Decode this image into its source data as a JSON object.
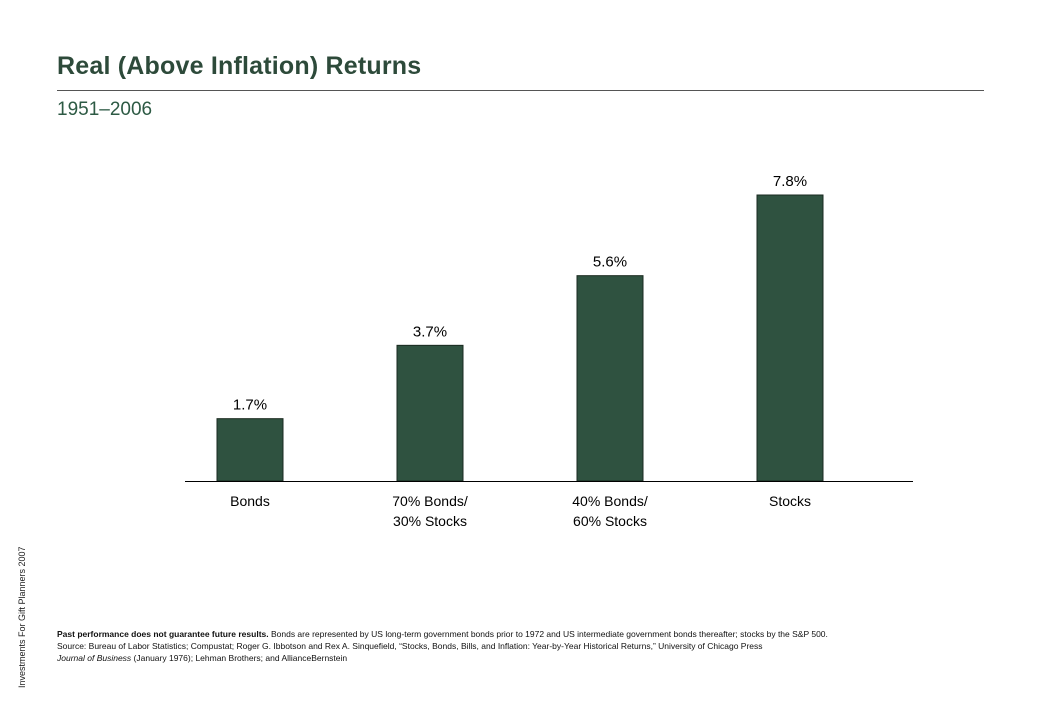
{
  "header": {
    "title": "Real (Above Inflation) Returns",
    "subtitle": "1951–2006"
  },
  "side_note": "Investments For Gift Planners 2007",
  "colors": {
    "bar": "#2f5240",
    "title": "#2d4a3a",
    "subtitle": "#2d5a44",
    "axis": "#000000"
  },
  "chart_data": {
    "type": "bar",
    "categories": [
      "Bonds",
      "70% Bonds/\n30% Stocks",
      "40% Bonds/\n60% Stocks",
      "Stocks"
    ],
    "values": [
      1.7,
      3.7,
      5.6,
      7.8
    ],
    "data_labels": [
      "1.7%",
      "3.7%",
      "5.6%",
      "7.8%"
    ],
    "title": "Real (Above Inflation) Returns",
    "subtitle": "1951–2006",
    "xlabel": "",
    "ylabel": "",
    "ylim": [
      0,
      8.5
    ],
    "grid": false,
    "legend": "none"
  },
  "footnote": {
    "bold_lead": "Past performance does not guarantee future results.",
    "line1_rest": " Bonds are represented by US long-term government bonds prior to 1972 and US intermediate government bonds thereafter; stocks by the S&P 500.",
    "source_line": "Source: Bureau of Labor Statistics; Compustat; Roger G. Ibbotson and Rex A. Sinquefield, “Stocks, Bonds, Bills, and Inflation: Year-by-Year Historical Returns,” University of Chicago Press",
    "journal_italic": "Journal of Business",
    "journal_rest": " (January 1976); Lehman Brothers; and AllianceBernstein"
  }
}
